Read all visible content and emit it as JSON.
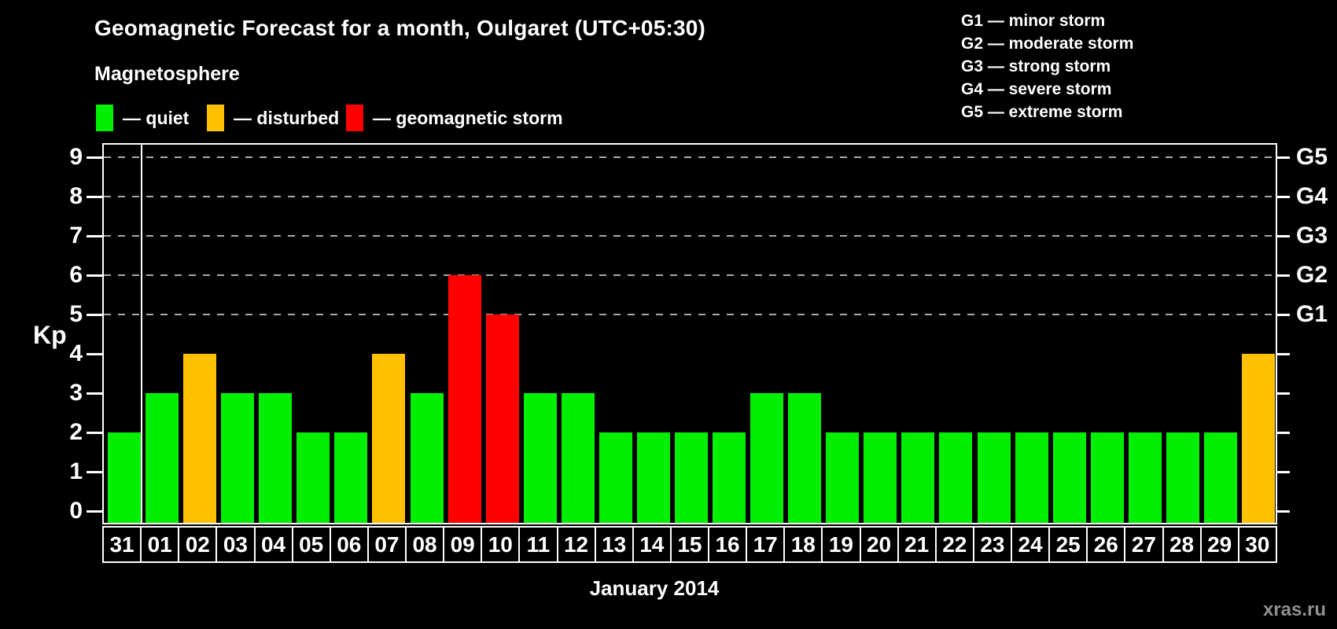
{
  "header": {
    "title": "Geomagnetic Forecast for a month, Oulgaret (UTC+05:30)",
    "subtitle": "Magnetosphere",
    "legend": [
      {
        "name": "quiet",
        "label": "— quiet",
        "color": "#00ee00"
      },
      {
        "name": "disturbed",
        "label": "— disturbed",
        "color": "#ffc000"
      },
      {
        "name": "storm",
        "label": "— geomagnetic storm",
        "color": "#ff0000"
      }
    ],
    "g_scale_legend": [
      "G1 — minor storm",
      "G2 — moderate storm",
      "G3 — strong storm",
      "G4 — severe storm",
      "G5 — extreme storm"
    ]
  },
  "chart_data": {
    "type": "bar",
    "title": "Geomagnetic Forecast for a month, Oulgaret (UTC+05:30)",
    "xlabel": "January 2014",
    "ylabel": "Kp",
    "ylim": [
      0,
      9
    ],
    "yticks": [
      0,
      1,
      2,
      3,
      4,
      5,
      6,
      7,
      8,
      9
    ],
    "gridlines_at": [
      5,
      6,
      7,
      8,
      9
    ],
    "grid_style": "dashed",
    "legend_position": "top",
    "right_axis": [
      {
        "kp": 5,
        "label": "G1"
      },
      {
        "kp": 6,
        "label": "G2"
      },
      {
        "kp": 7,
        "label": "G3"
      },
      {
        "kp": 8,
        "label": "G4"
      },
      {
        "kp": 9,
        "label": "G5"
      }
    ],
    "categories": [
      "31",
      "01",
      "02",
      "03",
      "04",
      "05",
      "06",
      "07",
      "08",
      "09",
      "10",
      "11",
      "12",
      "13",
      "14",
      "15",
      "16",
      "17",
      "18",
      "19",
      "20",
      "21",
      "22",
      "23",
      "24",
      "25",
      "26",
      "27",
      "28",
      "29",
      "30"
    ],
    "values": [
      2,
      3,
      4,
      3,
      3,
      2,
      2,
      4,
      3,
      6,
      5,
      3,
      3,
      2,
      2,
      2,
      2,
      3,
      3,
      2,
      2,
      2,
      2,
      2,
      2,
      2,
      2,
      2,
      2,
      2,
      4
    ],
    "statuses": [
      "quiet",
      "quiet",
      "disturbed",
      "quiet",
      "quiet",
      "quiet",
      "quiet",
      "disturbed",
      "quiet",
      "storm",
      "storm",
      "quiet",
      "quiet",
      "quiet",
      "quiet",
      "quiet",
      "quiet",
      "quiet",
      "quiet",
      "quiet",
      "quiet",
      "quiet",
      "quiet",
      "quiet",
      "quiet",
      "quiet",
      "quiet",
      "quiet",
      "quiet",
      "quiet",
      "disturbed"
    ],
    "colors_by_status": {
      "quiet": "#00ee00",
      "disturbed": "#ffc000",
      "storm": "#ff0000"
    },
    "month_divider_after_category": "31"
  },
  "footer": {
    "caption": "January 2014",
    "watermark": "xras.ru"
  }
}
